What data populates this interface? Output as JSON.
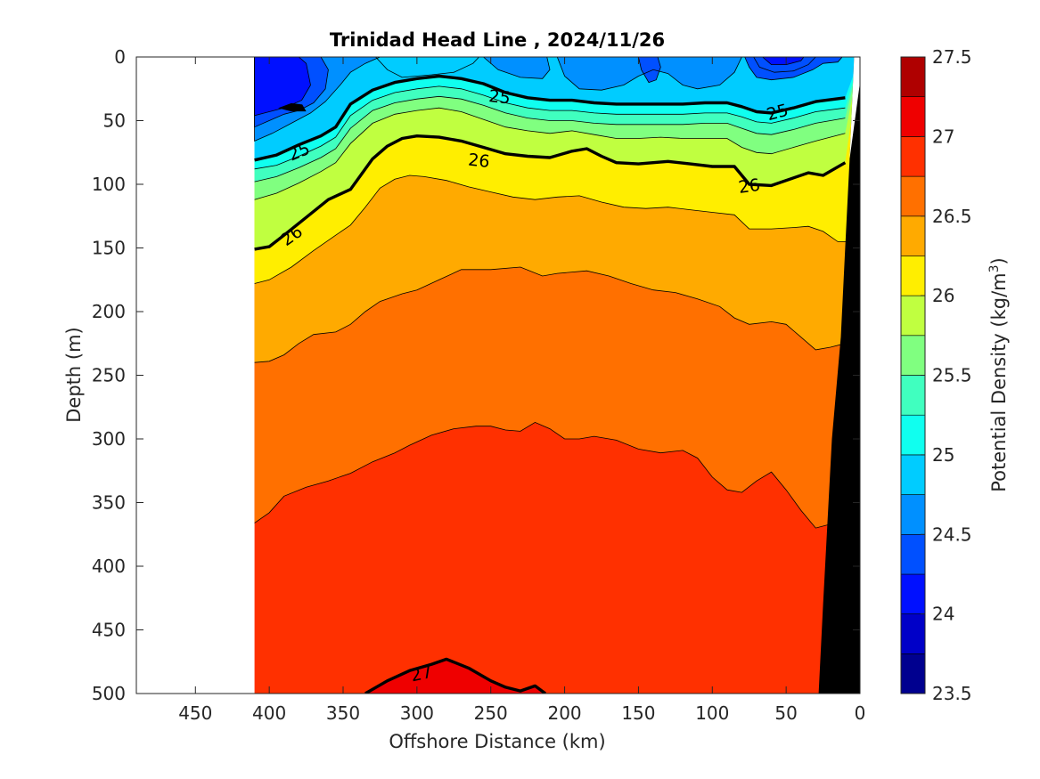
{
  "chart_data": {
    "type": "filled-contour",
    "title": "Trinidad Head Line , 2024/11/26",
    "xlabel": "Offshore Distance (km)",
    "ylabel": "Depth (m)",
    "colorbar_label": "Potential Density (kg/m",
    "colorbar_label_sup": "3",
    "colorbar_label_end": ")",
    "xlim": [
      490,
      0
    ],
    "ylim": [
      0,
      500
    ],
    "x_reversed": true,
    "y_reversed": true,
    "x_ticks": [
      450,
      400,
      350,
      300,
      250,
      200,
      150,
      100,
      50,
      0
    ],
    "y_ticks": [
      0,
      50,
      100,
      150,
      200,
      250,
      300,
      350,
      400,
      450,
      500
    ],
    "data_extent_x": [
      410,
      0
    ],
    "color_levels": [
      23.5,
      23.75,
      24,
      24.25,
      24.5,
      24.75,
      25,
      25.25,
      25.5,
      25.75,
      26,
      26.25,
      26.5,
      26.75,
      27,
      27.25,
      27.5
    ],
    "level_colors": [
      "#00008f",
      "#0000c8",
      "#0010ff",
      "#0050ff",
      "#0090ff",
      "#00ccff",
      "#10ffef",
      "#40ffbf",
      "#80ff80",
      "#c0ff40",
      "#ffee00",
      "#ffaa00",
      "#ff7000",
      "#ff3000",
      "#ef0000",
      "#af0000"
    ],
    "colorbar_ticks": [
      23.5,
      24,
      24.5,
      25,
      25.5,
      26,
      26.5,
      27,
      27.5
    ],
    "labeled_contours": [
      {
        "level": 25,
        "label": "25"
      },
      {
        "level": 26,
        "label": "26"
      },
      {
        "level": 27,
        "label": "27"
      }
    ],
    "contour_25": [
      [
        410,
        81
      ],
      [
        395,
        77
      ],
      [
        380,
        69
      ],
      [
        365,
        62
      ],
      [
        355,
        55
      ],
      [
        345,
        37
      ],
      [
        330,
        26
      ],
      [
        315,
        20
      ],
      [
        300,
        17
      ],
      [
        285,
        15
      ],
      [
        270,
        17
      ],
      [
        255,
        21
      ],
      [
        240,
        28
      ],
      [
        225,
        32
      ],
      [
        210,
        34
      ],
      [
        195,
        34
      ],
      [
        180,
        36
      ],
      [
        165,
        37
      ],
      [
        150,
        37
      ],
      [
        135,
        37
      ],
      [
        120,
        37
      ],
      [
        105,
        36
      ],
      [
        90,
        36
      ],
      [
        80,
        39
      ],
      [
        70,
        43
      ],
      [
        60,
        44
      ],
      [
        45,
        40
      ],
      [
        30,
        35
      ],
      [
        10,
        32
      ]
    ],
    "contour_26": [
      [
        410,
        151
      ],
      [
        400,
        149
      ],
      [
        390,
        140
      ],
      [
        375,
        126
      ],
      [
        360,
        112
      ],
      [
        345,
        104
      ],
      [
        340,
        96
      ],
      [
        330,
        80
      ],
      [
        320,
        70
      ],
      [
        310,
        64
      ],
      [
        300,
        62
      ],
      [
        285,
        63
      ],
      [
        270,
        66
      ],
      [
        255,
        71
      ],
      [
        240,
        76
      ],
      [
        225,
        78
      ],
      [
        210,
        79
      ],
      [
        195,
        74
      ],
      [
        185,
        72
      ],
      [
        175,
        78
      ],
      [
        165,
        83
      ],
      [
        150,
        84
      ],
      [
        130,
        82
      ],
      [
        115,
        84
      ],
      [
        100,
        86
      ],
      [
        85,
        86
      ],
      [
        75,
        100
      ],
      [
        60,
        101
      ],
      [
        45,
        95
      ],
      [
        35,
        91
      ],
      [
        25,
        93
      ],
      [
        10,
        83
      ]
    ],
    "contour_27": [
      [
        335,
        500
      ],
      [
        320,
        490
      ],
      [
        305,
        482
      ],
      [
        290,
        477
      ],
      [
        280,
        473
      ],
      [
        265,
        480
      ],
      [
        250,
        490
      ],
      [
        240,
        495
      ],
      [
        230,
        498
      ],
      [
        220,
        494
      ],
      [
        213,
        500
      ]
    ],
    "bottom_boundary": [
      [
        28,
        500
      ],
      [
        25,
        430
      ],
      [
        19,
        300
      ],
      [
        13,
        220
      ],
      [
        10,
        150
      ],
      [
        7,
        80
      ],
      [
        4,
        0
      ],
      [
        0,
        0
      ],
      [
        0,
        500
      ]
    ],
    "annotations": [
      {
        "text": "25",
        "x": 244,
        "y": 31
      },
      {
        "text": "25",
        "x": 56,
        "y": 43
      },
      {
        "text": "25",
        "x": 380,
        "y": 74
      },
      {
        "text": "26",
        "x": 258,
        "y": 81
      },
      {
        "text": "26",
        "x": 75,
        "y": 101
      },
      {
        "text": "26",
        "x": 385,
        "y": 140
      },
      {
        "text": "27",
        "x": 297,
        "y": 484
      }
    ]
  }
}
